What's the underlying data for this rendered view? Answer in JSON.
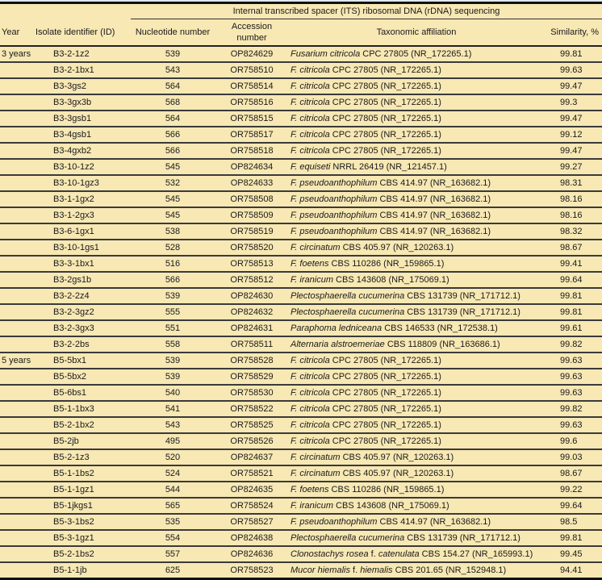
{
  "header": {
    "group": "Internal transcribed spacer (ITS) ribosomal DNA (rDNA) sequencing",
    "year": "Year",
    "id": "Isolate identifier (ID)",
    "nucleotide": "Nucleotide number",
    "accession": "Accession number",
    "taxonomy": "Taxonomic affiliation",
    "similarity": "Similarity, %"
  },
  "rows": [
    {
      "year": "3 years",
      "id": "B3-2-1z2",
      "nuc": "539",
      "acc": "OP824629",
      "tax": [
        [
          "Fusarium citricola",
          1
        ],
        [
          " CPC 27805 (NR_172265.1)",
          0
        ]
      ],
      "sim": "99.81"
    },
    {
      "year": "",
      "id": "B3-2-1bx1",
      "nuc": "543",
      "acc": "OR758510",
      "tax": [
        [
          "F. citricola",
          1
        ],
        [
          " CPC 27805 (NR_172265.1)",
          0
        ]
      ],
      "sim": "99.63"
    },
    {
      "year": "",
      "id": "B3-3gs2",
      "nuc": "564",
      "acc": "OR758514",
      "tax": [
        [
          "F. citricola",
          1
        ],
        [
          " CPC 27805 (NR_172265.1)",
          0
        ]
      ],
      "sim": "99.47"
    },
    {
      "year": "",
      "id": "B3-3gx3b",
      "nuc": "568",
      "acc": "OR758516",
      "tax": [
        [
          "F. citricola",
          1
        ],
        [
          " CPC 27805 (NR_172265.1)",
          0
        ]
      ],
      "sim": "99.3"
    },
    {
      "year": "",
      "id": "B3-3gsb1",
      "nuc": "564",
      "acc": "OR758515",
      "tax": [
        [
          "F. citricola",
          1
        ],
        [
          " CPC 27805 (NR_172265.1)",
          0
        ]
      ],
      "sim": "99.47"
    },
    {
      "year": "",
      "id": "B3-4gsb1",
      "nuc": "566",
      "acc": "OR758517",
      "tax": [
        [
          "F. citricola",
          1
        ],
        [
          " CPC 27805 (NR_172265.1)",
          0
        ]
      ],
      "sim": "99.12"
    },
    {
      "year": "",
      "id": "B3-4gxb2",
      "nuc": "566",
      "acc": "OR758518",
      "tax": [
        [
          "F. citricola",
          1
        ],
        [
          " CPC 27805 (NR_172265.1)",
          0
        ]
      ],
      "sim": "99.47"
    },
    {
      "year": "",
      "id": "B3-10-1z2",
      "nuc": "545",
      "acc": "OP824634",
      "tax": [
        [
          "F. equiseti",
          1
        ],
        [
          " NRRL 26419 (NR_121457.1)",
          0
        ]
      ],
      "sim": "99.27"
    },
    {
      "year": "",
      "id": "B3-10-1gz3",
      "nuc": "532",
      "acc": "OP824633",
      "tax": [
        [
          "F. pseudoanthophilum",
          1
        ],
        [
          " CBS 414.97 (NR_163682.1)",
          0
        ]
      ],
      "sim": "98.31"
    },
    {
      "year": "",
      "id": "B3-1-1gx2",
      "nuc": "545",
      "acc": "OR758508",
      "tax": [
        [
          "F. pseudoanthophilum",
          1
        ],
        [
          " CBS 414.97 (NR_163682.1)",
          0
        ]
      ],
      "sim": "98.16"
    },
    {
      "year": "",
      "id": "B3-1-2gx3",
      "nuc": "545",
      "acc": "OR758509",
      "tax": [
        [
          "F. pseudoanthophilum",
          1
        ],
        [
          " CBS 414.97 (NR_163682.1)",
          0
        ]
      ],
      "sim": "98.16"
    },
    {
      "year": "",
      "id": "B3-6-1gx1",
      "nuc": "538",
      "acc": "OR758519",
      "tax": [
        [
          "F. pseudoanthophilum",
          1
        ],
        [
          " CBS 414.97 (NR_163682.1)",
          0
        ]
      ],
      "sim": "98.32"
    },
    {
      "year": "",
      "id": "B3-10-1gs1",
      "nuc": "528",
      "acc": "OR758520",
      "tax": [
        [
          "F. circinatum",
          1
        ],
        [
          " CBS 405.97 (NR_120263.1)",
          0
        ]
      ],
      "sim": "98.67"
    },
    {
      "year": "",
      "id": "B3-3-1bx1",
      "nuc": "516",
      "acc": "OR758513",
      "tax": [
        [
          "F. foetens",
          1
        ],
        [
          " CBS 110286 (NR_159865.1)",
          0
        ]
      ],
      "sim": "99.41"
    },
    {
      "year": "",
      "id": "B3-2gs1b",
      "nuc": "566",
      "acc": "OR758512",
      "tax": [
        [
          "F. iranicum",
          1
        ],
        [
          " CBS 143608 (NR_175069.1)",
          0
        ]
      ],
      "sim": "99.64"
    },
    {
      "year": "",
      "id": "B3-2-2z4",
      "nuc": "539",
      "acc": "OP824630",
      "tax": [
        [
          "Plectosphaerella cucumerina",
          1
        ],
        [
          " CBS 131739 (NR_171712.1)",
          0
        ]
      ],
      "sim": "99.81"
    },
    {
      "year": "",
      "id": "B3-2-3gz2",
      "nuc": "555",
      "acc": "OP824632",
      "tax": [
        [
          "Plectosphaerella cucumerina",
          1
        ],
        [
          " CBS 131739 (NR_171712.1)",
          0
        ]
      ],
      "sim": "99.81"
    },
    {
      "year": "",
      "id": "B3-2-3gx3",
      "nuc": "551",
      "acc": "OP824631",
      "tax": [
        [
          "Paraphoma ledniceana",
          1
        ],
        [
          " CBS 146533 (NR_172538.1)",
          0
        ]
      ],
      "sim": "99.61"
    },
    {
      "year": "",
      "id": "B3-2-2bs",
      "nuc": "558",
      "acc": "OR758511",
      "tax": [
        [
          "Alternaria alstroemeriae",
          1
        ],
        [
          " CBS 118809 (NR_163686.1)",
          0
        ]
      ],
      "sim": "99.82"
    },
    {
      "year": "5 years",
      "id": "B5-5bx1",
      "nuc": "539",
      "acc": "OR758528",
      "tax": [
        [
          "F. citricola",
          1
        ],
        [
          " CPC 27805 (NR_172265.1)",
          0
        ]
      ],
      "sim": "99.63"
    },
    {
      "year": "",
      "id": "B5-5bx2",
      "nuc": "539",
      "acc": "OR758529",
      "tax": [
        [
          "F. citricola",
          1
        ],
        [
          " CPC 27805 (NR_172265.1)",
          0
        ]
      ],
      "sim": "99.63"
    },
    {
      "year": "",
      "id": "B5-6bs1",
      "nuc": "540",
      "acc": "OR758530",
      "tax": [
        [
          "F. citricola",
          1
        ],
        [
          " CPC 27805 (NR_172265.1)",
          0
        ]
      ],
      "sim": "99.63"
    },
    {
      "year": "",
      "id": "B5-1-1bx3",
      "nuc": "541",
      "acc": "OR758522",
      "tax": [
        [
          "F. citricola",
          1
        ],
        [
          " CPC 27805 (NR_172265.1)",
          0
        ]
      ],
      "sim": "99.82"
    },
    {
      "year": "",
      "id": "B5-2-1bx2",
      "nuc": "543",
      "acc": "OR758525",
      "tax": [
        [
          "F. citricola",
          1
        ],
        [
          " CPC 27805 (NR_172265.1)",
          0
        ]
      ],
      "sim": "99.63"
    },
    {
      "year": "",
      "id": "B5-2jb",
      "nuc": "495",
      "acc": "OR758526",
      "tax": [
        [
          "F. citricola",
          1
        ],
        [
          " CPC 27805 (NR_172265.1)",
          0
        ]
      ],
      "sim": "99.6"
    },
    {
      "year": "",
      "id": "B5-2-1z3",
      "nuc": "520",
      "acc": "OP824637",
      "tax": [
        [
          "F. circinatum",
          1
        ],
        [
          " CBS 405.97 (NR_120263.1)",
          0
        ]
      ],
      "sim": "99.03"
    },
    {
      "year": "",
      "id": "B5-1-1bs2",
      "nuc": "524",
      "acc": "OR758521",
      "tax": [
        [
          "F. circinatum",
          1
        ],
        [
          " CBS 405.97 (NR_120263.1)",
          0
        ]
      ],
      "sim": "98.67"
    },
    {
      "year": "",
      "id": "B5-1-1gz1",
      "nuc": "544",
      "acc": "OP824635",
      "tax": [
        [
          "F. foetens",
          1
        ],
        [
          " CBS 110286 (NR_159865.1)",
          0
        ]
      ],
      "sim": "99.22"
    },
    {
      "year": "",
      "id": "B5-1jkgs1",
      "nuc": "565",
      "acc": "OR758524",
      "tax": [
        [
          "F. iranicum",
          1
        ],
        [
          " CBS 143608 (NR_175069.1)",
          0
        ]
      ],
      "sim": "99.64"
    },
    {
      "year": "",
      "id": "B5-3-1bs2",
      "nuc": "535",
      "acc": "OR758527",
      "tax": [
        [
          "F. pseudoanthophilum",
          1
        ],
        [
          " CBS 414.97 (NR_163682.1)",
          0
        ]
      ],
      "sim": "98.5"
    },
    {
      "year": "",
      "id": "B5-3-1gz1",
      "nuc": "554",
      "acc": "OP824638",
      "tax": [
        [
          "Plectosphaerella cucumerina",
          1
        ],
        [
          " CBS 131739 (NR_171712.1)",
          0
        ]
      ],
      "sim": "99.81"
    },
    {
      "year": "",
      "id": "B5-2-1bs2",
      "nuc": "557",
      "acc": "OP824636",
      "tax": [
        [
          "Clonostachys rosea",
          1
        ],
        [
          " f. ",
          0
        ],
        [
          "catenulata",
          1
        ],
        [
          " CBS 154.27 (NR_165993.1)",
          0
        ]
      ],
      "sim": "99.45"
    },
    {
      "year": "",
      "id": "B5-1-1jb",
      "nuc": "625",
      "acc": "OR758523",
      "tax": [
        [
          "Mucor hiemalis",
          1
        ],
        [
          " f. ",
          0
        ],
        [
          "hiemalis",
          1
        ],
        [
          " CBS 201.65 (NR_152948.1)",
          0
        ]
      ],
      "sim": "94.41"
    }
  ],
  "colors": {
    "background": "#f7e8b4",
    "rule": "#3a3a3a"
  }
}
